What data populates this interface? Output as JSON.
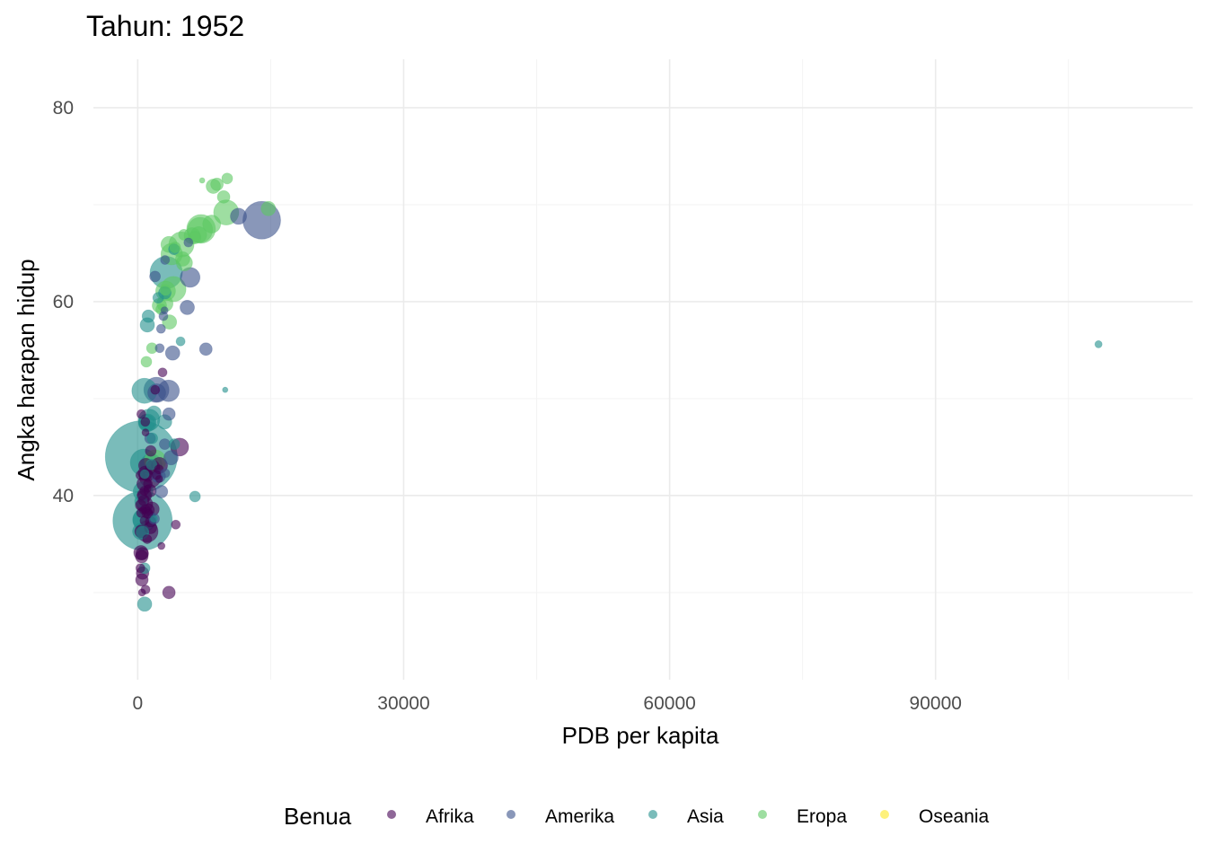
{
  "chart_data": {
    "type": "scatter",
    "title": "Tahun: 1952",
    "xlabel": "PDB per kapita",
    "ylabel": "Angka harapan hidup",
    "xlim": [
      -5000,
      119000
    ],
    "ylim": [
      21,
      85
    ],
    "x_ticks": [
      0,
      30000,
      60000,
      90000
    ],
    "x_tick_labels": [
      "0",
      "30000",
      "60000",
      "90000"
    ],
    "y_ticks": [
      40,
      60,
      80
    ],
    "y_tick_labels": [
      "40",
      "60",
      "80"
    ],
    "grid": true,
    "legend": {
      "title": "Benua",
      "position": "bottom",
      "entries": [
        "Afrika",
        "Amerika",
        "Asia",
        "Eropa",
        "Oseania"
      ]
    },
    "colors": {
      "Afrika": "#440154",
      "Amerika": "#3b528b",
      "Asia": "#21908c",
      "Eropa": "#5dc863",
      "Oseania": "#fde725"
    },
    "series": [
      {
        "name": "Afrika",
        "points": [
          {
            "x": 2449,
            "y": 43.1,
            "r": 9
          },
          {
            "x": 3521,
            "y": 30.0,
            "r": 7
          },
          {
            "x": 1063,
            "y": 38.2,
            "r": 6
          },
          {
            "x": 851,
            "y": 47.6,
            "r": 5
          },
          {
            "x": 543,
            "y": 32.0,
            "r": 7
          },
          {
            "x": 339,
            "y": 39.0,
            "r": 6
          },
          {
            "x": 1173,
            "y": 38.5,
            "r": 7
          },
          {
            "x": 1071,
            "y": 35.5,
            "r": 5
          },
          {
            "x": 1179,
            "y": 38.1,
            "r": 5
          },
          {
            "x": 1103,
            "y": 40.7,
            "r": 4
          },
          {
            "x": 781,
            "y": 39.1,
            "r": 9
          },
          {
            "x": 2126,
            "y": 42.1,
            "r": 5
          },
          {
            "x": 1389,
            "y": 40.5,
            "r": 7
          },
          {
            "x": 2670,
            "y": 34.8,
            "r": 4
          },
          {
            "x": 1419,
            "y": 41.9,
            "r": 12
          },
          {
            "x": 376,
            "y": 38.2,
            "r": 5
          },
          {
            "x": 362,
            "y": 34.1,
            "r": 8
          },
          {
            "x": 4293,
            "y": 37.0,
            "r": 5
          },
          {
            "x": 485,
            "y": 30.0,
            "r": 4
          },
          {
            "x": 911,
            "y": 43.1,
            "r": 8
          },
          {
            "x": 510,
            "y": 34.0,
            "r": 7
          },
          {
            "x": 300,
            "y": 32.5,
            "r": 5
          },
          {
            "x": 854,
            "y": 42.3,
            "r": 8
          },
          {
            "x": 299,
            "y": 42.1,
            "r": 5
          },
          {
            "x": 575,
            "y": 38.5,
            "r": 4
          },
          {
            "x": 2388,
            "y": 42.7,
            "r": 5
          },
          {
            "x": 1443,
            "y": 36.7,
            "r": 7
          },
          {
            "x": 369,
            "y": 36.3,
            "r": 7
          },
          {
            "x": 452,
            "y": 33.7,
            "r": 7
          },
          {
            "x": 744,
            "y": 40.5,
            "r": 5
          },
          {
            "x": 1968,
            "y": 50.9,
            "r": 5
          },
          {
            "x": 1688,
            "y": 42.9,
            "r": 8
          },
          {
            "x": 469,
            "y": 31.3,
            "r": 7
          },
          {
            "x": 2424,
            "y": 41.7,
            "r": 4
          },
          {
            "x": 762,
            "y": 37.4,
            "r": 5
          },
          {
            "x": 1077,
            "y": 36.3,
            "r": 12
          },
          {
            "x": 493,
            "y": 40.0,
            "r": 5
          },
          {
            "x": 880,
            "y": 46.5,
            "r": 4
          },
          {
            "x": 1450,
            "y": 37.3,
            "r": 6
          },
          {
            "x": 879,
            "y": 30.3,
            "r": 5
          },
          {
            "x": 4725,
            "y": 45.0,
            "r": 10
          },
          {
            "x": 1615,
            "y": 38.6,
            "r": 8
          },
          {
            "x": 1148,
            "y": 41.2,
            "r": 5
          },
          {
            "x": 716,
            "y": 41.2,
            "r": 8
          },
          {
            "x": 859,
            "y": 38.6,
            "r": 5
          },
          {
            "x": 1468,
            "y": 44.6,
            "r": 6
          },
          {
            "x": 734,
            "y": 40.0,
            "r": 8
          },
          {
            "x": 1147,
            "y": 42.0,
            "r": 6
          },
          {
            "x": 407,
            "y": 48.4,
            "r": 5
          },
          {
            "x": 2800,
            "y": 52.7,
            "r": 5
          },
          {
            "x": 685,
            "y": 39.5,
            "r": 6
          }
        ]
      },
      {
        "name": "Amerika",
        "points": [
          {
            "x": 5911,
            "y": 62.5,
            "r": 11
          },
          {
            "x": 2677,
            "y": 40.4,
            "r": 7
          },
          {
            "x": 2109,
            "y": 50.9,
            "r": 14
          },
          {
            "x": 11367,
            "y": 68.8,
            "r": 9
          },
          {
            "x": 3940,
            "y": 54.7,
            "r": 8
          },
          {
            "x": 2144,
            "y": 50.6,
            "r": 10
          },
          {
            "x": 2627,
            "y": 57.2,
            "r": 5
          },
          {
            "x": 5587,
            "y": 59.4,
            "r": 8
          },
          {
            "x": 1398,
            "y": 45.9,
            "r": 6
          },
          {
            "x": 3522,
            "y": 48.4,
            "r": 7
          },
          {
            "x": 3048,
            "y": 45.3,
            "r": 6
          },
          {
            "x": 2428,
            "y": 42.0,
            "r": 7
          },
          {
            "x": 1840,
            "y": 37.6,
            "r": 6
          },
          {
            "x": 2195,
            "y": 41.9,
            "r": 6
          },
          {
            "x": 2898,
            "y": 58.5,
            "r": 5
          },
          {
            "x": 3478,
            "y": 50.8,
            "r": 12
          },
          {
            "x": 3112,
            "y": 42.3,
            "r": 5
          },
          {
            "x": 2480,
            "y": 55.2,
            "r": 5
          },
          {
            "x": 1952,
            "y": 62.6,
            "r": 6
          },
          {
            "x": 3759,
            "y": 43.9,
            "r": 8
          },
          {
            "x": 3082,
            "y": 64.3,
            "r": 5
          },
          {
            "x": 3023,
            "y": 59.1,
            "r": 4
          },
          {
            "x": 13990,
            "y": 68.4,
            "r": 21
          },
          {
            "x": 5717,
            "y": 66.1,
            "r": 5
          },
          {
            "x": 7690,
            "y": 55.1,
            "r": 7
          }
        ]
      },
      {
        "name": "Asia",
        "points": [
          {
            "x": 779,
            "y": 28.8,
            "r": 8
          },
          {
            "x": 9867,
            "y": 50.9,
            "r": 3
          },
          {
            "x": 684,
            "y": 37.5,
            "r": 12
          },
          {
            "x": 368,
            "y": 39.4,
            "r": 7
          },
          {
            "x": 400,
            "y": 44.0,
            "r": 40
          },
          {
            "x": 3054,
            "y": 60.9,
            "r": 7
          },
          {
            "x": 547,
            "y": 37.4,
            "r": 33
          },
          {
            "x": 750,
            "y": 37.5,
            "r": 13
          },
          {
            "x": 3035,
            "y": 47.6,
            "r": 8
          },
          {
            "x": 4130,
            "y": 45.3,
            "r": 6
          },
          {
            "x": 4087,
            "y": 65.4,
            "r": 6
          },
          {
            "x": 3217,
            "y": 63.0,
            "r": 18
          },
          {
            "x": 1547,
            "y": 43.2,
            "r": 6
          },
          {
            "x": 1088,
            "y": 47.5,
            "r": 10
          },
          {
            "x": 1031,
            "y": 47.5,
            "r": 9
          },
          {
            "x": 108382,
            "y": 55.6,
            "r": 4
          },
          {
            "x": 4835,
            "y": 55.9,
            "r": 5
          },
          {
            "x": 1831,
            "y": 48.5,
            "r": 8
          },
          {
            "x": 786,
            "y": 42.2,
            "r": 5
          },
          {
            "x": 331,
            "y": 36.3,
            "r": 9
          },
          {
            "x": 545,
            "y": 36.2,
            "r": 7
          },
          {
            "x": 1829,
            "y": 37.6,
            "r": 4
          },
          {
            "x": 684,
            "y": 43.4,
            "r": 15
          },
          {
            "x": 1273,
            "y": 47.8,
            "r": 12
          },
          {
            "x": 6460,
            "y": 39.9,
            "r": 6
          },
          {
            "x": 2315,
            "y": 60.4,
            "r": 6
          },
          {
            "x": 1084,
            "y": 57.6,
            "r": 8
          },
          {
            "x": 1644,
            "y": 45.9,
            "r": 6
          },
          {
            "x": 1207,
            "y": 58.5,
            "r": 7
          },
          {
            "x": 757,
            "y": 50.8,
            "r": 14
          },
          {
            "x": 605,
            "y": 40.4,
            "r": 11
          },
          {
            "x": 1516,
            "y": 43.2,
            "r": 12
          },
          {
            "x": 781,
            "y": 32.5,
            "r": 6
          }
        ]
      },
      {
        "name": "Eropa",
        "points": [
          {
            "x": 1601,
            "y": 55.2,
            "r": 6
          },
          {
            "x": 6137,
            "y": 66.8,
            "r": 9
          },
          {
            "x": 8343,
            "y": 68.0,
            "r": 10
          },
          {
            "x": 973,
            "y": 53.8,
            "r": 6
          },
          {
            "x": 2444,
            "y": 59.6,
            "r": 8
          },
          {
            "x": 3119,
            "y": 61.2,
            "r": 6
          },
          {
            "x": 6877,
            "y": 66.9,
            "r": 9
          },
          {
            "x": 9692,
            "y": 70.8,
            "r": 7
          },
          {
            "x": 6425,
            "y": 66.6,
            "r": 7
          },
          {
            "x": 7030,
            "y": 67.4,
            "r": 14
          },
          {
            "x": 7144,
            "y": 67.5,
            "r": 16
          },
          {
            "x": 3531,
            "y": 65.9,
            "r": 9
          },
          {
            "x": 5264,
            "y": 64.0,
            "r": 9
          },
          {
            "x": 7268,
            "y": 72.5,
            "r": 3
          },
          {
            "x": 5210,
            "y": 66.9,
            "r": 6
          },
          {
            "x": 4931,
            "y": 65.9,
            "r": 14
          },
          {
            "x": 2648,
            "y": 59.2,
            "r": 6
          },
          {
            "x": 8941,
            "y": 72.1,
            "r": 7
          },
          {
            "x": 10095,
            "y": 72.7,
            "r": 6
          },
          {
            "x": 4029,
            "y": 61.3,
            "r": 14
          },
          {
            "x": 3068,
            "y": 59.8,
            "r": 9
          },
          {
            "x": 3145,
            "y": 61.1,
            "r": 11
          },
          {
            "x": 3581,
            "y": 57.9,
            "r": 8
          },
          {
            "x": 5074,
            "y": 64.4,
            "r": 8
          },
          {
            "x": 4215,
            "y": 65.6,
            "r": 6
          },
          {
            "x": 3834,
            "y": 64.9,
            "r": 12
          },
          {
            "x": 8528,
            "y": 71.9,
            "r": 8
          },
          {
            "x": 14734,
            "y": 69.6,
            "r": 8
          },
          {
            "x": 1970,
            "y": 43.6,
            "r": 12
          },
          {
            "x": 9980,
            "y": 69.2,
            "r": 14
          }
        ]
      },
      {
        "name": "Oseania",
        "points": []
      }
    ]
  }
}
